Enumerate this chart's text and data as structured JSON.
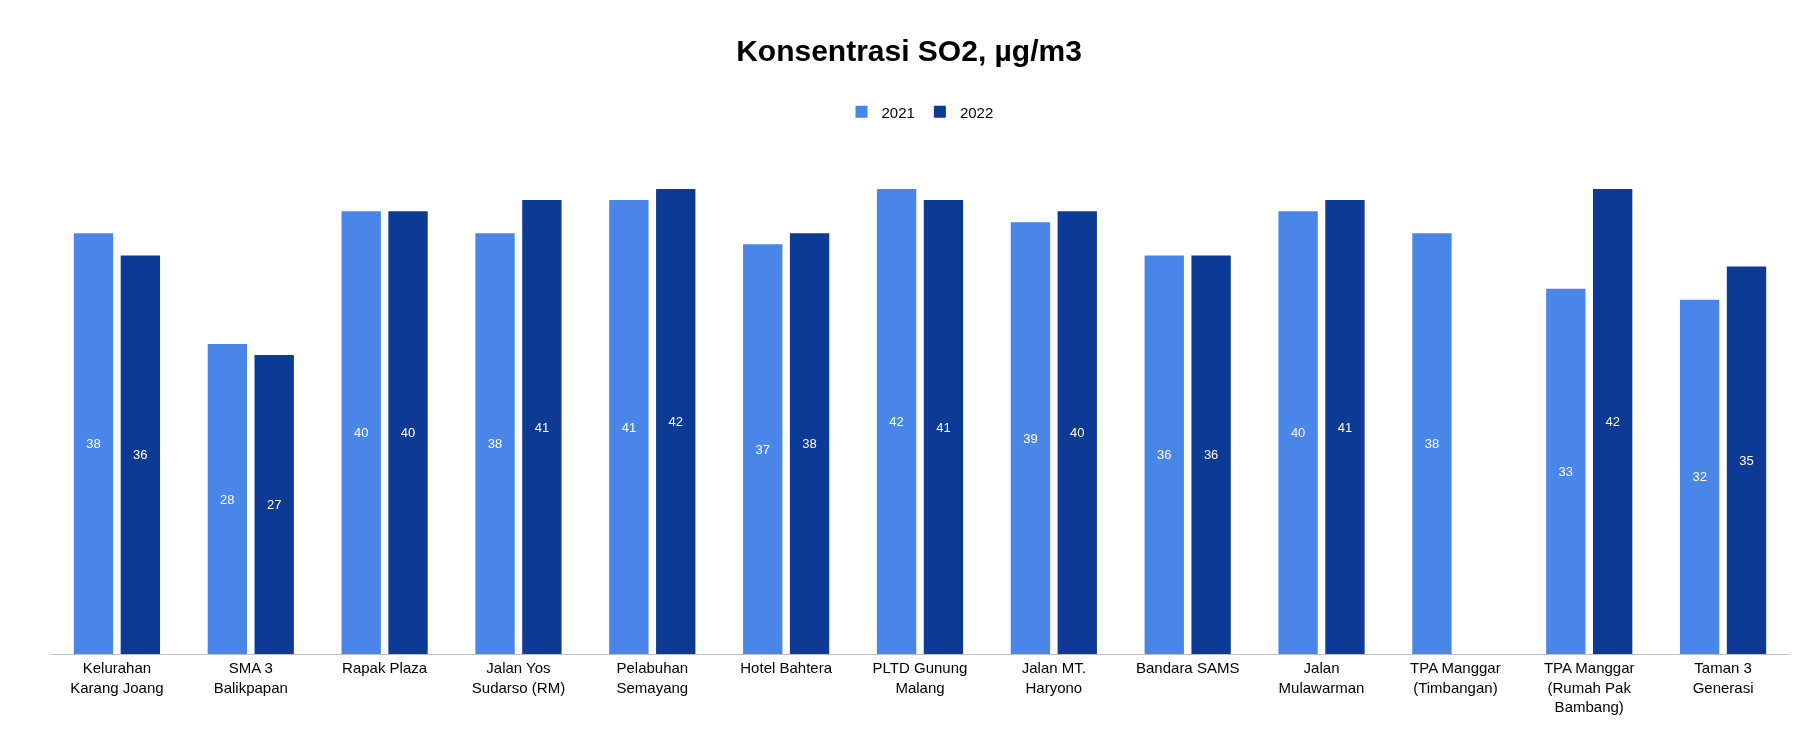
{
  "chart_data": {
    "type": "bar",
    "title": "Konsentrasi SO2, µg/m3",
    "categories": [
      "Kelurahan Karang Joang",
      "SMA 3 Balikpapan",
      "Rapak Plaza",
      "Jalan Yos Sudarso (RM)",
      "Pelabuhan Semayang",
      "Hotel Bahtera",
      "PLTD Gunung Malang",
      "Jalan MT. Haryono",
      "Bandara SAMS",
      "Jalan Mulawarman",
      "TPA Manggar (Timbangan)",
      "TPA Manggar (Rumah Pak Bambang)",
      "Taman 3 Generasi"
    ],
    "series": [
      {
        "name": "2021",
        "color": "#4a86e8",
        "values": [
          38,
          28,
          40,
          38,
          41,
          37,
          42,
          39,
          36,
          40,
          38,
          33,
          32
        ]
      },
      {
        "name": "2022",
        "color": "#0c3a95",
        "values": [
          36,
          27,
          40,
          41,
          42,
          38,
          41,
          40,
          36,
          41,
          null,
          42,
          35
        ]
      }
    ],
    "data_labels": true,
    "legend": "top"
  }
}
